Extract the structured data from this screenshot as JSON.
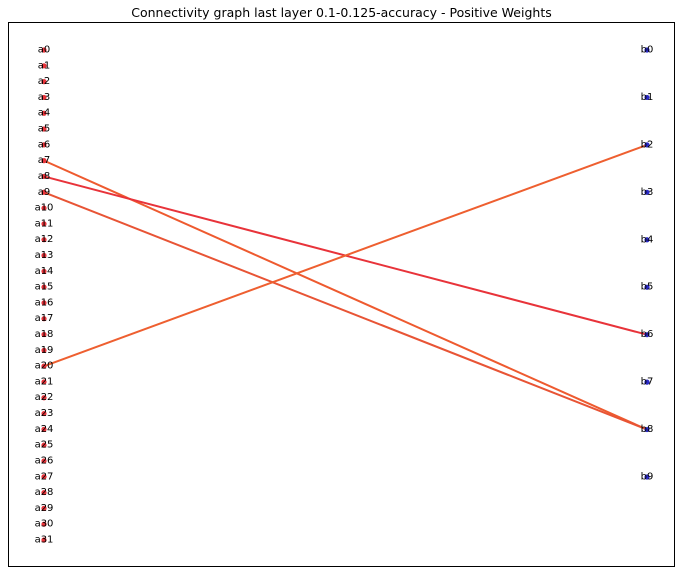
{
  "title": "Connectivity graph last layer 0.1-0.125-accuracy - Positive Weights",
  "left_nodes": [
    "a0",
    "a1",
    "a2",
    "a3",
    "a4",
    "a5",
    "a6",
    "a7",
    "a8",
    "a9",
    "a10",
    "a11",
    "a12",
    "a13",
    "a14",
    "a15",
    "a16",
    "a17",
    "a18",
    "a19",
    "a20",
    "a21",
    "a22",
    "a23",
    "a24",
    "a25",
    "a26",
    "a27",
    "a28",
    "a29",
    "a30",
    "a31"
  ],
  "right_nodes": [
    "b0",
    "b1",
    "b2",
    "b3",
    "b4",
    "b5",
    "b6",
    "b7",
    "b8",
    "b9"
  ],
  "edges": [
    {
      "from": "a7",
      "to": "b8",
      "color": "#ee5a2f"
    },
    {
      "from": "a8",
      "to": "b6",
      "color": "#e8333a"
    },
    {
      "from": "a9",
      "to": "b8",
      "color": "#e85435"
    },
    {
      "from": "a20",
      "to": "b2",
      "color": "#ee5f30"
    }
  ],
  "colors": {
    "left_node": "#e8333a",
    "right_node": "#2b2bc8",
    "frame": "#000000"
  }
}
